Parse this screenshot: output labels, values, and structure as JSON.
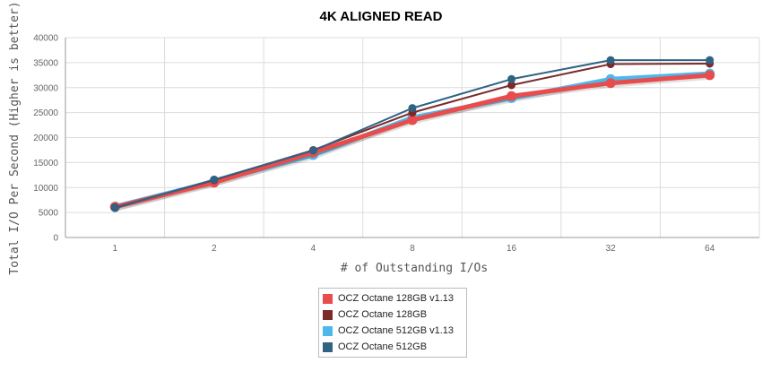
{
  "chart_data": {
    "type": "line",
    "title": "4K ALIGNED READ",
    "xlabel": "# of Outstanding I/Os",
    "ylabel": "Total I/O Per Second (Higher is better)",
    "categories": [
      "1",
      "2",
      "4",
      "8",
      "16",
      "32",
      "64"
    ],
    "ylim": [
      0,
      40000
    ],
    "yticks": [
      0,
      5000,
      10000,
      15000,
      20000,
      25000,
      30000,
      35000,
      40000
    ],
    "grid": true,
    "legend_position": "bottom",
    "series": [
      {
        "name": "OCZ Octane 128GB v1.13",
        "color": "#e84c4c",
        "values": [
          6100,
          11000,
          17000,
          23500,
          28300,
          30900,
          32500
        ]
      },
      {
        "name": "OCZ Octane 128GB",
        "color": "#7b2a2a",
        "values": [
          6000,
          11500,
          17500,
          25000,
          30500,
          34700,
          34800
        ]
      },
      {
        "name": "OCZ Octane 512GB v1.13",
        "color": "#4db8ea",
        "values": [
          6200,
          11200,
          16500,
          24000,
          27900,
          31700,
          32800
        ]
      },
      {
        "name": "OCZ Octane 512GB",
        "color": "#2f6384",
        "values": [
          5900,
          11600,
          17400,
          25900,
          31700,
          35500,
          35500
        ]
      }
    ]
  }
}
